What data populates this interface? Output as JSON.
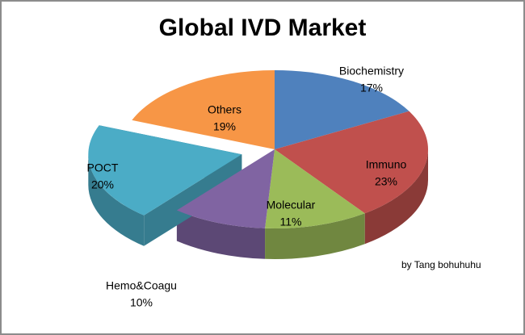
{
  "chart_data": {
    "type": "pie",
    "title": "Global IVD Market",
    "categories": [
      "Biochemistry",
      "Immuno",
      "Molecular",
      "Hemo&Coagu",
      "POCT",
      "Others"
    ],
    "values": [
      17,
      23,
      11,
      10,
      20,
      19
    ],
    "value_labels": [
      "17%",
      "23%",
      "11%",
      "10%",
      "20%",
      "19%"
    ],
    "colors": [
      "#4f81bd",
      "#c0504d",
      "#9bbb59",
      "#8064a2",
      "#4bacc6",
      "#f79646"
    ],
    "exploded": "POCT",
    "annotation": "by Tang bohuhuhu"
  }
}
